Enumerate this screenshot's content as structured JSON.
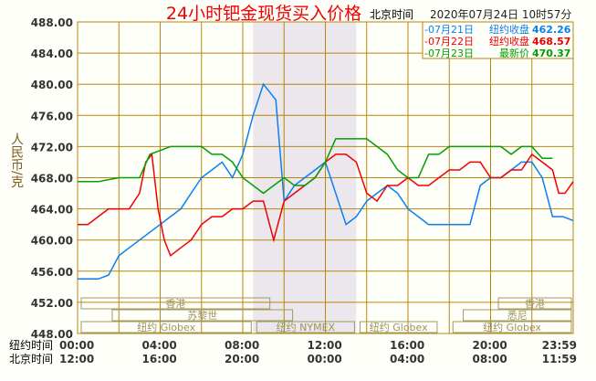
{
  "chart_data": {
    "type": "line",
    "title": "24小时钯金现货买入价格",
    "time_zone_label": "北京时间",
    "timestamp": "2020年07月24日 10时57分",
    "ylabel": "人民币/克",
    "ylim": [
      448,
      488
    ],
    "yticks": [
      "448.00",
      "452.00",
      "456.00",
      "460.00",
      "464.00",
      "468.00",
      "472.00",
      "476.00",
      "480.00",
      "484.00",
      "488.00"
    ],
    "xlim_hours": [
      0,
      24
    ],
    "x_rows": [
      {
        "label": "纽约时间",
        "ticks": [
          "00:00",
          "04:00",
          "08:00",
          "12:00",
          "16:00",
          "20:00",
          "23:59"
        ]
      },
      {
        "label": "北京时间",
        "ticks": [
          "12:00",
          "16:00",
          "20:00",
          "00:00",
          "04:00",
          "08:00",
          "11:59"
        ]
      }
    ],
    "legend": [
      {
        "date": "-07月21日",
        "label": "纽约收盘",
        "value": "462.26",
        "color": "#0a7ff0"
      },
      {
        "date": "-07月22日",
        "label": "纽约收盘",
        "value": "468.57",
        "color": "#f00000"
      },
      {
        "date": "-07月23日",
        "label": "最新价",
        "value": "470.37",
        "color": "#00a000"
      }
    ],
    "series": [
      {
        "name": "07月21日",
        "color": "#0a7ff0",
        "x": [
          0,
          1,
          1.5,
          2,
          2.5,
          3,
          3.5,
          4,
          4.5,
          5,
          5.5,
          6,
          6.5,
          7,
          7.5,
          8,
          8.5,
          9,
          9.3,
          9.6,
          10,
          10.5,
          11,
          11.5,
          12,
          12.5,
          13,
          13.5,
          14,
          14.5,
          15,
          15.5,
          16,
          16.5,
          17,
          18,
          19,
          19.5,
          20,
          20.5,
          21,
          21.5,
          22,
          22.5,
          23,
          23.5,
          24
        ],
        "y": [
          455,
          455,
          455.5,
          458,
          459,
          460,
          461,
          462,
          463,
          464,
          466,
          468,
          469,
          470,
          468,
          471,
          476,
          480,
          479,
          478,
          465,
          467,
          468,
          469,
          470,
          466,
          462,
          463,
          465,
          466,
          467,
          466,
          464,
          463,
          462,
          462,
          462,
          467,
          468,
          468,
          469,
          470,
          470,
          468,
          463,
          463,
          462.5
        ]
      },
      {
        "name": "07月22日",
        "color": "#f00000",
        "x": [
          0,
          0.5,
          1,
          1.5,
          2,
          2.5,
          3,
          3.3,
          3.6,
          3.9,
          4.2,
          4.5,
          5,
          5.5,
          6,
          6.5,
          7,
          7.5,
          8,
          8.5,
          9,
          9.5,
          10,
          10.5,
          11,
          11.5,
          12,
          12.5,
          13,
          13.5,
          14,
          14.5,
          15,
          15.5,
          16,
          16.5,
          17,
          17.5,
          18,
          18.5,
          19,
          19.5,
          20,
          20.5,
          21,
          21.5,
          22,
          22.5,
          23,
          23.3,
          23.6,
          24
        ],
        "y": [
          462,
          462,
          463,
          464,
          464,
          464,
          466,
          470,
          471,
          464,
          460,
          458,
          459,
          460,
          462,
          463,
          463,
          464,
          464,
          465,
          465,
          460,
          465,
          466,
          467,
          468,
          470,
          471,
          471,
          470,
          466,
          465,
          467,
          467,
          468,
          467,
          467,
          468,
          469,
          469,
          470,
          470,
          468,
          468,
          469,
          469,
          471,
          470,
          469,
          466,
          466,
          467.5
        ]
      },
      {
        "name": "07月23日",
        "color": "#00a000",
        "x": [
          0,
          1,
          2,
          2.5,
          3,
          3.5,
          4,
          4.5,
          5,
          5.5,
          6,
          6.5,
          7,
          7.5,
          8,
          8.5,
          9,
          9.5,
          10,
          10.5,
          11,
          11.5,
          12,
          12.5,
          13,
          13.5,
          14,
          14.5,
          15,
          15.5,
          16,
          16.5,
          17,
          17.5,
          18,
          19,
          20,
          20.5,
          21,
          21.5,
          22,
          22.5,
          23
        ],
        "y": [
          467.5,
          467.5,
          468,
          468,
          468,
          471,
          471.5,
          472,
          472,
          472,
          472,
          471,
          471,
          470,
          468,
          467,
          466,
          467,
          468,
          467,
          467,
          468,
          470,
          473,
          473,
          473,
          473,
          472,
          471,
          469,
          468,
          468,
          471,
          471,
          472,
          472,
          472,
          472,
          471,
          472,
          472,
          470.5,
          470.5
        ]
      }
    ],
    "markets": [
      {
        "name": "香港",
        "start": 0,
        "end": 9.4
      },
      {
        "name": "香港",
        "start": 20.2,
        "end": 24
      },
      {
        "name": "苏黎世",
        "start": 1.5,
        "end": 10.5
      },
      {
        "name": "悉尼",
        "start": 18.5,
        "end": 24
      },
      {
        "name": "纽约 Globex",
        "start": 0,
        "end": 8.5
      },
      {
        "name": "纽约 NYMEX",
        "start": 8.5,
        "end": 13.5
      },
      {
        "name": "纽约 Globex",
        "start": 13.5,
        "end": 17.5
      },
      {
        "name": "纽约 Globex",
        "start": 18,
        "end": 24
      }
    ],
    "shaded_range_hours": [
      8.5,
      13.5
    ]
  }
}
